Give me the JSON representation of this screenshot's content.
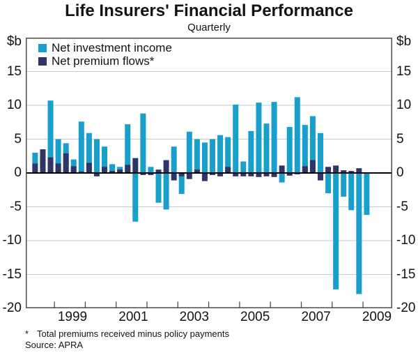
{
  "chart_data": {
    "type": "bar",
    "title": "Life Insurers' Financial Performance",
    "subtitle": "Quarterly",
    "y_unit": "$b",
    "ylim": [
      -20,
      20
    ],
    "y_ticks": [
      15,
      10,
      5,
      0,
      -5,
      -10,
      -15,
      -20
    ],
    "x_tick_years": [
      "1999",
      "2001",
      "2003",
      "2005",
      "2007",
      "2009"
    ],
    "grid": "horizontal",
    "legend_position": "top-left-inside",
    "bar_style": "overlaid, second series drawn in front of first",
    "series": [
      {
        "name": "Net investment income",
        "color": "#189fcb",
        "values": [
          3.0,
          2.5,
          10.7,
          5.0,
          4.4,
          2.0,
          7.6,
          5.9,
          5.0,
          3.9,
          1.3,
          0.9,
          7.2,
          -7.2,
          8.8,
          0.9,
          -4.4,
          -5.4,
          3.9,
          -3.1,
          6.1,
          5.0,
          4.5,
          5.0,
          5.6,
          5.3,
          10.1,
          1.7,
          6.2,
          10.4,
          7.3,
          10.5,
          -1.4,
          6.8,
          11.2,
          7.1,
          8.4,
          5.9,
          -3.0,
          -17.2,
          -3.5,
          -5.5,
          -17.9,
          -6.2
        ]
      },
      {
        "name": "Net premium flows*",
        "color": "#2f3566",
        "values": [
          1.4,
          3.5,
          2.3,
          1.4,
          2.9,
          1.0,
          0.2,
          1.5,
          -0.5,
          0.9,
          0.3,
          0.5,
          1.2,
          2.2,
          -0.3,
          -0.3,
          0.5,
          1.9,
          -1.1,
          -0.5,
          -0.9,
          0.5,
          -1.2,
          -0.3,
          -0.5,
          0.9,
          -0.5,
          -0.5,
          -0.5,
          -0.6,
          -0.5,
          -0.6,
          1.1,
          -0.4,
          -0.2,
          1.0,
          1.9,
          -1.1,
          0.9,
          1.1,
          0.4,
          0.3,
          0.7,
          0.1
        ]
      }
    ],
    "footnote_marker": "*",
    "footnote": "Total premiums received minus policy payments",
    "source": "Source: APRA"
  }
}
